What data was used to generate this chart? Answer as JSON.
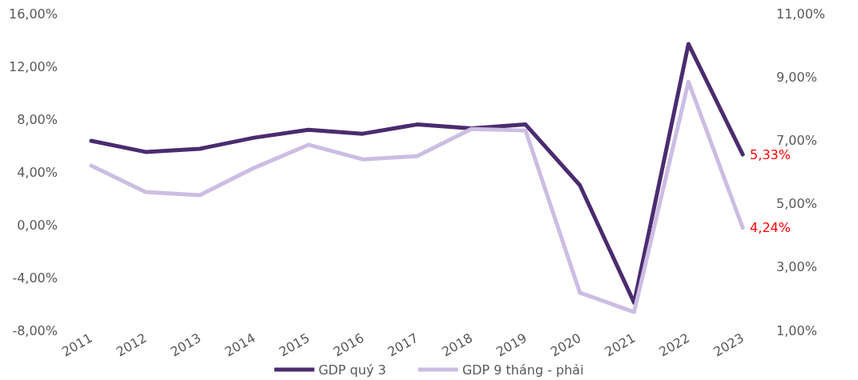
{
  "chart_data": {
    "type": "line",
    "categories": [
      "2011",
      "2012",
      "2013",
      "2014",
      "2015",
      "2016",
      "2017",
      "2018",
      "2019",
      "2020",
      "2021",
      "2022",
      "2023"
    ],
    "series": [
      {
        "name": "GDP quý 3",
        "color": "#4b2c6f",
        "values": [
          6.36,
          5.52,
          5.76,
          6.6,
          7.2,
          6.9,
          7.6,
          7.3,
          7.6,
          3.0,
          -5.9,
          13.7,
          5.33
        ],
        "value_labels": [
          null,
          null,
          null,
          null,
          null,
          null,
          null,
          null,
          null,
          null,
          null,
          null,
          "5,33%"
        ]
      },
      {
        "name": "GDP 9 tháng - phải",
        "color": "#cdbde3",
        "axis": "y2",
        "values": [
          6.2,
          5.37,
          5.27,
          6.13,
          6.86,
          6.4,
          6.5,
          7.36,
          7.31,
          2.19,
          1.58,
          8.85,
          4.24
        ],
        "value_labels": [
          null,
          null,
          null,
          null,
          null,
          null,
          null,
          null,
          null,
          null,
          null,
          null,
          "4,24%"
        ]
      }
    ],
    "ylim": [
      -8,
      16
    ],
    "yticks": [
      {
        "value": -8,
        "label": "-8,00%"
      },
      {
        "value": -4,
        "label": "-4,00%"
      },
      {
        "value": 0,
        "label": "0,00%"
      },
      {
        "value": 4,
        "label": "4,00%"
      },
      {
        "value": 8,
        "label": "8,00%"
      },
      {
        "value": 12,
        "label": "12,00%"
      },
      {
        "value": 16,
        "label": "16,00%"
      }
    ],
    "y2lim": [
      1,
      11
    ],
    "y2ticks": [
      {
        "value": 1,
        "label": "1,00%"
      },
      {
        "value": 3,
        "label": "3,00%"
      },
      {
        "value": 5,
        "label": "5,00%"
      },
      {
        "value": 7,
        "label": "7,00%"
      },
      {
        "value": 9,
        "label": "9,00%"
      },
      {
        "value": 11,
        "label": "11,00%"
      }
    ],
    "grid": false,
    "legend": "bottom",
    "marker": "none",
    "line_style": "solid"
  }
}
